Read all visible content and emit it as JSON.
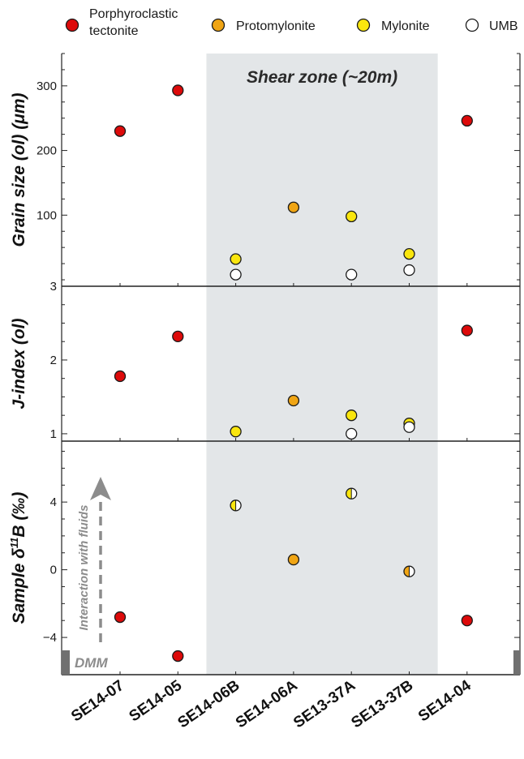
{
  "legend": [
    {
      "key": "porphyroclastic",
      "label_lines": [
        "Porphyroclastic",
        "tectonite"
      ],
      "color": "#dd0a0a"
    },
    {
      "key": "protomylonite",
      "label_lines": [
        "Protomylonite"
      ],
      "color": "#f0a514"
    },
    {
      "key": "mylonite",
      "label_lines": [
        "Mylonite"
      ],
      "color": "#fae60e"
    },
    {
      "key": "umb",
      "label_lines": [
        "UMB"
      ],
      "color": "#ffffff"
    }
  ],
  "colors": {
    "porphyroclastic": "#dd0a0a",
    "protomylonite": "#f0a514",
    "mylonite": "#fae60e",
    "umb": "#ffffff",
    "shear_zone": "#e3e6e8",
    "dmm_band": "#707070",
    "annotation": "#8c8c8c"
  },
  "shear_zone_label": "Shear zone (~20m)",
  "arrow_label": "Interaction with fluids",
  "dmm_label": "DMM",
  "chart_data": {
    "type": "scatter",
    "categories": [
      "SE14-07",
      "SE14-05",
      "SE14-06B",
      "SE14-06A",
      "SE13-37A",
      "SE13-37B",
      "SE14-04"
    ],
    "shear_zone_categories": [
      "SE14-06B",
      "SE14-06A",
      "SE13-37A",
      "SE13-37B"
    ],
    "panels": [
      {
        "key": "grain",
        "ylabel": "Grain size (ol) (μm)",
        "ylim": [
          -10,
          350
        ],
        "ticks": [
          100,
          200,
          300
        ],
        "tick_labels": [
          "100",
          "200",
          "300"
        ],
        "points": [
          {
            "category": "SE14-07",
            "value": 230,
            "type": "porphyroclastic"
          },
          {
            "category": "SE14-05",
            "value": 293,
            "type": "porphyroclastic"
          },
          {
            "category": "SE14-04",
            "value": 246,
            "type": "porphyroclastic"
          },
          {
            "category": "SE14-06B",
            "value": 32,
            "type": "mylonite"
          },
          {
            "category": "SE14-06B",
            "value": 8,
            "type": "umb"
          },
          {
            "category": "SE14-06A",
            "value": 112,
            "type": "protomylonite"
          },
          {
            "category": "SE13-37A",
            "value": 98,
            "type": "mylonite"
          },
          {
            "category": "SE13-37A",
            "value": 8,
            "type": "umb"
          },
          {
            "category": "SE13-37B",
            "value": 40,
            "type": "mylonite"
          },
          {
            "category": "SE13-37B",
            "value": 15,
            "type": "umb"
          }
        ]
      },
      {
        "key": "jindex",
        "ylabel": "J-index (ol)",
        "ylim": [
          0.9,
          3.0
        ],
        "ticks": [
          1,
          2,
          3
        ],
        "tick_labels": [
          "1",
          "2",
          "3"
        ],
        "points": [
          {
            "category": "SE14-07",
            "value": 1.78,
            "type": "porphyroclastic"
          },
          {
            "category": "SE14-05",
            "value": 2.32,
            "type": "porphyroclastic"
          },
          {
            "category": "SE14-04",
            "value": 2.4,
            "type": "porphyroclastic"
          },
          {
            "category": "SE14-06B",
            "value": 1.03,
            "type": "mylonite"
          },
          {
            "category": "SE14-06A",
            "value": 1.45,
            "type": "protomylonite"
          },
          {
            "category": "SE13-37A",
            "value": 1.25,
            "type": "mylonite"
          },
          {
            "category": "SE13-37A",
            "value": 1.0,
            "type": "umb"
          },
          {
            "category": "SE13-37B",
            "value": 1.14,
            "type": "mylonite"
          },
          {
            "category": "SE13-37B",
            "value": 1.09,
            "type": "umb"
          }
        ]
      },
      {
        "key": "boron",
        "ylabel_main": "Sample δ",
        "ylabel_sup": "11",
        "ylabel_tail": "B (‰)",
        "ylim": [
          -6.2,
          7.6
        ],
        "ticks": [
          -4,
          0,
          4
        ],
        "tick_labels": [
          "−4",
          "0",
          "4"
        ],
        "points": [
          {
            "category": "SE14-07",
            "value": -2.8,
            "type": "porphyroclastic"
          },
          {
            "category": "SE14-05",
            "value": -5.1,
            "type": "porphyroclastic"
          },
          {
            "category": "SE14-04",
            "value": -3.0,
            "type": "porphyroclastic"
          },
          {
            "category": "SE14-06B",
            "value": 3.8,
            "type": "half",
            "left": "mylonite",
            "right": "umb"
          },
          {
            "category": "SE14-06A",
            "value": 0.6,
            "type": "protomylonite"
          },
          {
            "category": "SE13-37A",
            "value": 4.5,
            "type": "half",
            "left": "mylonite",
            "right": "umb"
          },
          {
            "category": "SE13-37B",
            "value": -0.1,
            "type": "half",
            "left": "protomylonite",
            "right": "umb"
          }
        ]
      }
    ]
  }
}
